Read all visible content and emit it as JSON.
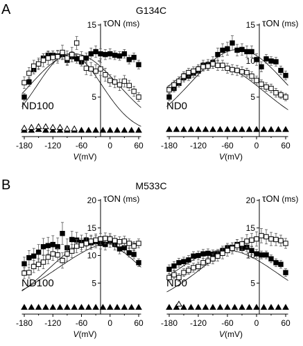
{
  "panels": [
    {
      "letter": "A",
      "title": "G134C",
      "xlabel_var": "V",
      "xlabel_unit": "(mV)",
      "ylabel_sym": "τ",
      "ylabel_sub": "ON",
      "ylabel_unit": "(ms)"
    },
    {
      "letter": "B",
      "title": "M533C",
      "xlabel_var": "V",
      "xlabel_unit": "(mV)",
      "ylabel_sym": "τ",
      "ylabel_sub": "ON",
      "ylabel_unit": "(ms)"
    }
  ],
  "chart_data": [
    {
      "type": "scatter",
      "panel": "A",
      "condition": "ND100",
      "xlabel": "V(mV)",
      "ylabel": "τON (ms)",
      "xlim": [
        -185,
        65
      ],
      "ylim": [
        0,
        15
      ],
      "xticks": [
        -180,
        -120,
        -60,
        0,
        60
      ],
      "yticks": [
        5,
        10,
        15
      ],
      "ytick_labels_shown": [
        5,
        15
      ],
      "series": [
        {
          "marker": "filled-square",
          "x": [
            -180,
            -170,
            -160,
            -150,
            -140,
            -130,
            -120,
            -110,
            -100,
            -90,
            -80,
            -70,
            -60,
            -50,
            -40,
            -30,
            -20,
            -10,
            0,
            10,
            20,
            30,
            40,
            50,
            60
          ],
          "y": [
            5.0,
            7.1,
            8.8,
            9.6,
            10.4,
            10.8,
            10.8,
            10.7,
            10.9,
            10.1,
            10.6,
            10.3,
            9.9,
            10.4,
            11.0,
            11.3,
            11.0,
            10.9,
            11.0,
            10.8,
            10.7,
            11.0,
            10.2,
            10.5,
            9.5
          ],
          "err": [
            0.5,
            0.6,
            0.6,
            0.6,
            0.6,
            0.6,
            0.6,
            0.7,
            0.6,
            0.6,
            0.7,
            0.6,
            0.6,
            0.7,
            0.8,
            0.8,
            0.7,
            0.7,
            0.7,
            0.6,
            0.6,
            0.6,
            0.6,
            0.6,
            0.6
          ],
          "fit": {
            "peak_x": -75,
            "peak_y": 11.0,
            "width": 110,
            "base": 0
          }
        },
        {
          "marker": "open-square",
          "x": [
            -180,
            -170,
            -160,
            -150,
            -140,
            -130,
            -120,
            -110,
            -100,
            -90,
            -80,
            -70,
            -60,
            -50,
            -40,
            -30,
            -20,
            -10,
            0,
            10,
            20,
            30,
            40,
            50,
            60
          ],
          "y": [
            7.0,
            8.3,
            9.3,
            9.6,
            10.1,
            10.4,
            10.5,
            10.6,
            11.2,
            10.4,
            10.9,
            12.5,
            10.4,
            9.0,
            8.9,
            8.6,
            8.9,
            8.1,
            7.3,
            7.1,
            6.7,
            7.2,
            6.6,
            5.8,
            5.0
          ],
          "err": [
            0.8,
            0.8,
            0.8,
            0.8,
            0.9,
            0.9,
            0.9,
            0.9,
            1.0,
            1.0,
            1.0,
            0.9,
            0.9,
            0.9,
            0.9,
            0.9,
            0.9,
            0.9,
            0.8,
            0.8,
            0.8,
            0.8,
            0.7,
            0.7,
            0.6
          ],
          "fit": {
            "peak_x": -85,
            "peak_y": 11.0,
            "width": 80,
            "base": 0
          }
        },
        {
          "marker": "filled-triangle",
          "x": [
            -180,
            -165,
            -150,
            -135,
            -120,
            -105,
            -90,
            -75,
            -60,
            -45,
            -30,
            -15,
            0,
            15,
            30,
            45,
            60
          ],
          "y": [
            0.4,
            0.4,
            0.5,
            0.4,
            0.4,
            0.4,
            0.4,
            0.4,
            0.4,
            0.4,
            0.4,
            0.4,
            0.4,
            0.4,
            0.4,
            0.4,
            0.4
          ]
        },
        {
          "marker": "open-triangle",
          "x": [
            -180,
            -165,
            -150,
            -135,
            -120,
            -105,
            -90,
            -75
          ],
          "y": [
            0.7,
            0.8,
            0.9,
            0.9,
            0.8,
            0.8,
            0.6,
            0.6
          ]
        }
      ]
    },
    {
      "type": "scatter",
      "panel": "A",
      "condition": "ND0",
      "xlabel": "V(mV)",
      "ylabel": "τON (ms)",
      "xlim": [
        -185,
        65
      ],
      "ylim": [
        0,
        15
      ],
      "xticks": [
        -180,
        -120,
        -60,
        0,
        60
      ],
      "yticks": [
        5,
        10,
        15
      ],
      "ytick_labels_shown": [
        5,
        10,
        15
      ],
      "series": [
        {
          "marker": "filled-square",
          "x": [
            -180,
            -170,
            -160,
            -150,
            -140,
            -130,
            -120,
            -110,
            -100,
            -90,
            -80,
            -70,
            -60,
            -50,
            -40,
            -30,
            -20,
            -10,
            0,
            10,
            20,
            30,
            40,
            50,
            60
          ],
          "y": [
            5.0,
            6.2,
            6.9,
            7.7,
            7.9,
            8.3,
            8.6,
            9.4,
            9.5,
            9.8,
            10.9,
            11.5,
            11.7,
            12.5,
            11.5,
            11.6,
            11.3,
            11.3,
            10.2,
            9.2,
            10.3,
            10.0,
            9.9,
            8.7,
            8.0
          ],
          "err": [
            0.5,
            0.5,
            0.5,
            0.6,
            0.6,
            0.6,
            0.7,
            0.7,
            0.7,
            0.8,
            0.9,
            0.9,
            0.9,
            1.0,
            0.8,
            0.8,
            0.8,
            0.8,
            0.8,
            0.7,
            0.6,
            0.6,
            0.6,
            0.6,
            0.6
          ],
          "fit": {
            "peak_x": -38,
            "peak_y": 11.6,
            "width": 115,
            "base": 0
          }
        },
        {
          "marker": "open-square",
          "x": [
            -180,
            -170,
            -160,
            -150,
            -140,
            -130,
            -120,
            -110,
            -100,
            -90,
            -80,
            -70,
            -60,
            -50,
            -40,
            -30,
            -20,
            -10,
            0,
            10,
            20,
            30,
            40,
            50,
            60
          ],
          "y": [
            6.0,
            6.7,
            7.2,
            7.9,
            8.4,
            8.6,
            8.9,
            9.2,
            9.3,
            9.6,
            9.4,
            9.4,
            9.0,
            8.8,
            8.7,
            8.5,
            8.4,
            7.9,
            7.3,
            6.8,
            6.4,
            6.2,
            5.6,
            5.3,
            5.0
          ],
          "err": [
            0.6,
            0.6,
            0.6,
            0.6,
            0.6,
            0.6,
            0.6,
            0.6,
            0.6,
            0.6,
            0.7,
            0.7,
            0.7,
            0.7,
            0.7,
            0.7,
            0.6,
            0.6,
            0.6,
            0.6,
            0.6,
            0.6,
            0.6,
            0.5,
            0.5
          ],
          "fit": {
            "peak_x": -90,
            "peak_y": 9.5,
            "width": 125,
            "base": 0
          }
        },
        {
          "marker": "filled-triangle",
          "x": [
            -180,
            -165,
            -150,
            -135,
            -120,
            -105,
            -90,
            -75,
            -60,
            -45,
            -30,
            -15,
            0,
            15,
            30,
            45,
            60
          ],
          "y": [
            0.5,
            0.5,
            0.5,
            0.5,
            0.5,
            0.5,
            0.5,
            0.5,
            0.5,
            0.5,
            0.5,
            0.5,
            0.5,
            0.5,
            0.5,
            0.5,
            0.5
          ]
        }
      ]
    },
    {
      "type": "scatter",
      "panel": "B",
      "condition": "ND100",
      "xlabel": "V(mV)",
      "ylabel": "τON (ms)",
      "xlim": [
        -185,
        65
      ],
      "ylim": [
        0,
        20
      ],
      "xticks": [
        -180,
        -120,
        -60,
        0,
        60
      ],
      "yticks": [
        5,
        10,
        15,
        20
      ],
      "ytick_labels_shown": [
        5,
        10,
        15,
        20
      ],
      "series": [
        {
          "marker": "filled-square",
          "x": [
            -180,
            -170,
            -160,
            -150,
            -140,
            -130,
            -120,
            -110,
            -100,
            -90,
            -80,
            -70,
            -60,
            -50,
            -40,
            -30,
            -20,
            -10,
            0,
            10,
            20,
            30,
            40,
            50,
            60
          ],
          "y": [
            8.5,
            9.6,
            9.9,
            10.6,
            11.6,
            11.8,
            12.0,
            11.6,
            14.0,
            11.4,
            12.9,
            12.8,
            12.4,
            12.8,
            12.3,
            12.5,
            12.2,
            12.0,
            12.6,
            12.0,
            11.2,
            11.4,
            10.5,
            10.2,
            8.7
          ],
          "err": [
            1.2,
            1.3,
            1.4,
            1.4,
            1.5,
            1.5,
            1.6,
            1.6,
            2.0,
            1.6,
            1.5,
            1.4,
            1.3,
            1.2,
            1.2,
            1.1,
            1.0,
            1.0,
            1.1,
            1.0,
            0.9,
            0.9,
            0.8,
            0.8,
            0.7
          ],
          "fit": {
            "peak_x": -30,
            "peak_y": 12.7,
            "width": 115,
            "base": 0
          }
        },
        {
          "marker": "open-square",
          "x": [
            -180,
            -170,
            -160,
            -150,
            -140,
            -130,
            -120,
            -110,
            -100,
            -90,
            -80,
            -70,
            -60,
            -50,
            -40,
            -30,
            -20,
            -10,
            0,
            10,
            20,
            30,
            40,
            50,
            60
          ],
          "y": [
            6.8,
            6.9,
            8.0,
            8.4,
            8.8,
            9.7,
            10.3,
            10.1,
            9.1,
            10.3,
            10.8,
            11.7,
            11.9,
            12.2,
            12.6,
            12.8,
            13.0,
            13.1,
            13.0,
            12.7,
            12.5,
            12.6,
            12.2,
            11.7,
            12.2
          ],
          "err": [
            1.0,
            1.0,
            1.1,
            1.1,
            1.2,
            1.2,
            1.2,
            1.2,
            1.4,
            1.3,
            1.2,
            1.2,
            1.2,
            1.1,
            1.1,
            1.1,
            1.0,
            1.0,
            1.0,
            0.9,
            0.9,
            0.9,
            0.8,
            0.8,
            0.8
          ],
          "fit": {
            "peak_x": 20,
            "peak_y": 12.6,
            "width": 155,
            "base": 0
          }
        },
        {
          "marker": "filled-triangle",
          "x": [
            -180,
            -165,
            -150,
            -135,
            -120,
            -105,
            -90,
            -75,
            -60,
            -45,
            -30,
            -15,
            0,
            15,
            30,
            45,
            60
          ],
          "y": [
            0.6,
            0.6,
            0.6,
            0.6,
            0.6,
            0.6,
            0.6,
            0.6,
            0.6,
            0.6,
            0.6,
            0.6,
            0.6,
            0.6,
            0.6,
            0.6,
            0.6
          ]
        }
      ]
    },
    {
      "type": "scatter",
      "panel": "B",
      "condition": "ND0",
      "xlabel": "V(mV)",
      "ylabel": "τON (ms)",
      "xlim": [
        -185,
        65
      ],
      "ylim": [
        0,
        20
      ],
      "xticks": [
        -180,
        -120,
        -60,
        0,
        60
      ],
      "yticks": [
        5,
        10,
        15,
        20
      ],
      "ytick_labels_shown": [
        5,
        10,
        15,
        20
      ],
      "series": [
        {
          "marker": "filled-square",
          "x": [
            -180,
            -170,
            -160,
            -150,
            -140,
            -130,
            -120,
            -110,
            -100,
            -90,
            -80,
            -70,
            -60,
            -50,
            -40,
            -30,
            -20,
            -10,
            0,
            10,
            20,
            30,
            40,
            50,
            60
          ],
          "y": [
            7.5,
            8.1,
            8.7,
            8.9,
            9.2,
            9.9,
            10.0,
            10.3,
            10.4,
            10.2,
            10.3,
            10.9,
            11.4,
            11.5,
            12.0,
            11.3,
            11.5,
            10.9,
            10.3,
            10.1,
            10.1,
            9.4,
            8.7,
            8.4,
            6.9
          ],
          "err": [
            0.8,
            0.8,
            0.8,
            0.8,
            0.8,
            0.8,
            0.8,
            0.8,
            0.8,
            0.8,
            0.8,
            0.8,
            0.8,
            0.8,
            0.9,
            0.8,
            0.8,
            0.8,
            0.8,
            0.7,
            0.7,
            0.7,
            0.7,
            0.7,
            0.7
          ],
          "fit": {
            "peak_x": -65,
            "peak_y": 11.0,
            "width": 130,
            "base": 0
          }
        },
        {
          "marker": "open-square",
          "x": [
            -180,
            -170,
            -160,
            -150,
            -140,
            -130,
            -120,
            -110,
            -100,
            -90,
            -80,
            -70,
            -60,
            -50,
            -40,
            -30,
            -20,
            -10,
            0,
            10,
            20,
            30,
            40,
            50,
            60
          ],
          "y": [
            6.0,
            6.5,
            6.0,
            6.9,
            7.3,
            7.8,
            8.0,
            8.7,
            9.0,
            9.4,
            9.9,
            10.4,
            10.9,
            11.3,
            11.8,
            12.1,
            12.6,
            12.8,
            13.0,
            13.6,
            13.4,
            13.0,
            12.9,
            12.7,
            12.2
          ],
          "err": [
            0.7,
            0.7,
            0.7,
            0.7,
            0.7,
            0.8,
            0.8,
            0.8,
            0.8,
            0.9,
            0.9,
            1.0,
            1.0,
            1.0,
            1.1,
            1.1,
            1.2,
            1.2,
            1.3,
            1.3,
            1.3,
            1.2,
            1.1,
            1.0,
            0.9
          ],
          "fit": {
            "peak_x": 10,
            "peak_y": 13.2,
            "width": 140,
            "base": 0
          }
        },
        {
          "marker": "filled-triangle",
          "x": [
            -180,
            -165,
            -150,
            -135,
            -120,
            -105,
            -90,
            -75,
            -60,
            -45,
            -30,
            -15,
            0,
            15,
            30,
            45,
            60
          ],
          "y": [
            0.6,
            0.6,
            0.6,
            0.6,
            0.6,
            0.6,
            0.6,
            0.6,
            0.6,
            0.6,
            0.6,
            0.6,
            0.6,
            0.6,
            0.6,
            0.6,
            0.6
          ]
        },
        {
          "marker": "open-triangle",
          "x": [
            -160
          ],
          "y": [
            1.2
          ]
        }
      ]
    }
  ]
}
